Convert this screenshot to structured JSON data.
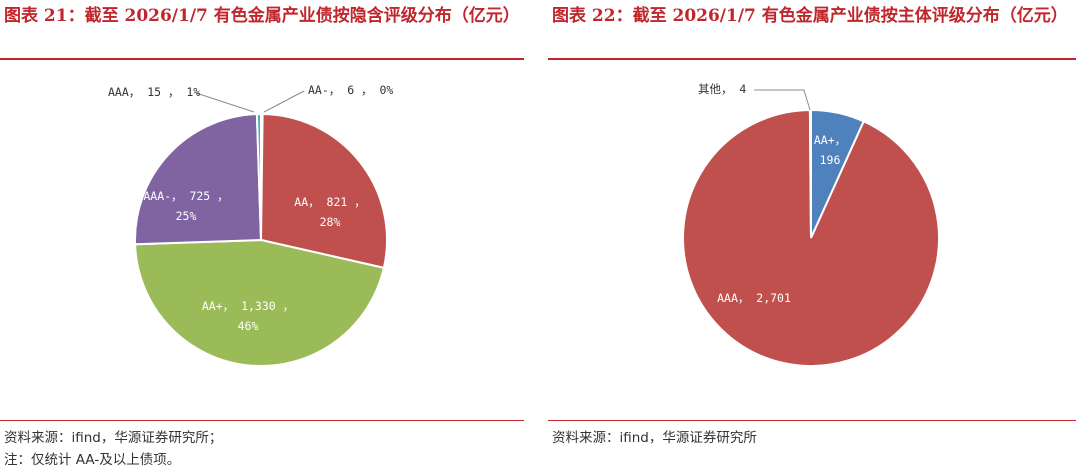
{
  "charts": [
    {
      "title": "图表 21：截至 2026/1/7 有色金属产业债按隐含评级分布（亿元）",
      "notes": [
        "资料来源：ifind，华源证券研究所；",
        "注：仅统计 AA-及以上债项。"
      ]
    },
    {
      "title": "图表 22：截至 2026/1/7 有色金属产业债按主体评级分布（亿元）",
      "notes": [
        "资料来源：ifind，华源证券研究所"
      ]
    }
  ],
  "chart_data": [
    {
      "type": "pie",
      "title": "图表 21：截至 2026/1/7 有色金属产业债按隐含评级分布（亿元）",
      "unit": "亿元",
      "slices": [
        {
          "label": "AA-",
          "value": 6,
          "percent": "0%",
          "color": "#4a7ebb",
          "text": "AA-， 6 ， 0%"
        },
        {
          "label": "AA",
          "value": 821,
          "percent": "28%",
          "color": "#c0504d",
          "text": [
            "AA， 821 ，",
            "28%"
          ]
        },
        {
          "label": "AA+",
          "value": 1330,
          "percent": "46%",
          "color": "#9bbb59",
          "text": [
            "AA+， 1,330 ，",
            "46%"
          ]
        },
        {
          "label": "AAA-",
          "value": 725,
          "percent": "25%",
          "color": "#8064a2",
          "text": [
            "AAA-， 725 ，",
            "25%"
          ]
        },
        {
          "label": "AAA",
          "value": 15,
          "percent": "1%",
          "color": "#4bacc6",
          "text": "AAA， 15 ， 1%"
        }
      ]
    },
    {
      "type": "pie",
      "title": "图表 22：截至 2026/1/7 有色金属产业债按主体评级分布（亿元）",
      "unit": "亿元",
      "slices": [
        {
          "label": "AA+",
          "value": 196,
          "color": "#4f81bd",
          "text": [
            "AA+，",
            "196"
          ]
        },
        {
          "label": "AAA",
          "value": 2701,
          "color": "#c0504d",
          "text": "AAA， 2,701"
        },
        {
          "label": "其他",
          "value": 4,
          "color": "#c0504d",
          "text": "其他， 4"
        }
      ]
    }
  ]
}
